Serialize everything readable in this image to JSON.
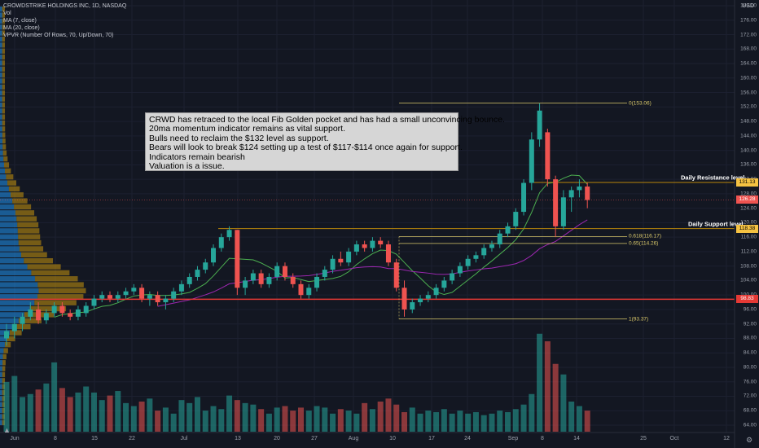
{
  "legend": {
    "title": "CROWDSTRIKE HOLDINGS INC, 1D, NASDAQ",
    "vol": "Vol",
    "ma7": "MA (7, close)",
    "ma20": "MA (20, close)",
    "vpvr": "VPVR (Number Of Rows, 70, Up/Down, 70)"
  },
  "currency": "USD",
  "annotation": {
    "lines": [
      "CRWD has retraced to the local Fib Golden pocket and has had a small unconvincing bounce.",
      "20ma momentum indicator remains as vital support.",
      "Bulls need to reclaim the $132 level as support.",
      "Bears will look to break $124 setting up a test of $117-$114 once again for support.",
      "Indicators remain bearish",
      "Valuation is a issue."
    ]
  },
  "levels": {
    "resistance_label": "Daily Resistance level",
    "support_label": "Daily Support level"
  },
  "fib_labels": {
    "f0": "0(153.06)",
    "f618": "0.618(116.17)",
    "f65": "0.65(114.26)",
    "f1": "1(93.37)"
  },
  "price_badges": {
    "resistance": "131.13",
    "last": "126.28",
    "support": "118.38",
    "red_line": "98.83"
  },
  "colors": {
    "background": "#131722",
    "up": "#26a69a",
    "down": "#ef5350",
    "ma7": "#4caf50",
    "ma20": "#9c27b0",
    "fib_line": "#d9c86a",
    "level_line": "#b8860b",
    "vpvr_up": "#2196f3",
    "vpvr_down": "#c8960c"
  },
  "x_axis_labels": [
    "Jun",
    "8",
    "15",
    "22",
    "Jul",
    "13",
    "20",
    "27",
    "Aug",
    "10",
    "17",
    "24",
    "Sep",
    "8",
    "14",
    "25",
    "Oct",
    "12"
  ],
  "chart_data": {
    "type": "candlestick",
    "title": "CROWDSTRIKE HOLDINGS INC, 1D, NASDAQ",
    "ylabel": "USD",
    "ylim": [
      60,
      180
    ],
    "yticks": [
      64,
      68,
      72,
      76,
      80,
      84,
      88,
      92,
      96,
      100,
      104,
      108,
      112,
      116,
      120,
      124,
      128,
      132,
      136,
      140,
      144,
      148,
      152,
      156,
      160,
      164,
      168,
      172,
      176,
      180
    ],
    "grid": true,
    "candles": [
      {
        "d": "Jun 1",
        "o": 88,
        "h": 92,
        "l": 86,
        "c": 90
      },
      {
        "d": "Jun 2",
        "o": 90,
        "h": 94,
        "l": 88,
        "c": 92
      },
      {
        "d": "Jun 3",
        "o": 92,
        "h": 95,
        "l": 90,
        "c": 94
      },
      {
        "d": "Jun 4",
        "o": 94,
        "h": 98,
        "l": 93,
        "c": 96
      },
      {
        "d": "Jun 5",
        "o": 96,
        "h": 98,
        "l": 92,
        "c": 93
      },
      {
        "d": "Jun 8",
        "o": 93,
        "h": 96,
        "l": 92,
        "c": 95
      },
      {
        "d": "Jun 9",
        "o": 95,
        "h": 98,
        "l": 94,
        "c": 97
      },
      {
        "d": "Jun 10",
        "o": 97,
        "h": 98,
        "l": 94,
        "c": 95
      },
      {
        "d": "Jun 11",
        "o": 95,
        "h": 96,
        "l": 93,
        "c": 94
      },
      {
        "d": "Jun 12",
        "o": 94,
        "h": 97,
        "l": 93,
        "c": 96
      },
      {
        "d": "Jun 15",
        "o": 95,
        "h": 98,
        "l": 94,
        "c": 97
      },
      {
        "d": "Jun 16",
        "o": 97,
        "h": 100,
        "l": 96,
        "c": 99
      },
      {
        "d": "Jun 17",
        "o": 99,
        "h": 101,
        "l": 98,
        "c": 100
      },
      {
        "d": "Jun 18",
        "o": 100,
        "h": 101,
        "l": 98,
        "c": 99
      },
      {
        "d": "Jun 19",
        "o": 99,
        "h": 101,
        "l": 98,
        "c": 100
      },
      {
        "d": "Jun 22",
        "o": 100,
        "h": 102,
        "l": 99,
        "c": 101
      },
      {
        "d": "Jun 23",
        "o": 101,
        "h": 103,
        "l": 100,
        "c": 102
      },
      {
        "d": "Jun 24",
        "o": 102,
        "h": 103,
        "l": 98,
        "c": 99
      },
      {
        "d": "Jun 25",
        "o": 99,
        "h": 101,
        "l": 97,
        "c": 100
      },
      {
        "d": "Jun 26",
        "o": 100,
        "h": 101,
        "l": 97,
        "c": 98
      },
      {
        "d": "Jun 29",
        "o": 98,
        "h": 100,
        "l": 96,
        "c": 99
      },
      {
        "d": "Jun 30",
        "o": 99,
        "h": 102,
        "l": 98,
        "c": 101
      },
      {
        "d": "Jul 1",
        "o": 101,
        "h": 104,
        "l": 100,
        "c": 103
      },
      {
        "d": "Jul 2",
        "o": 103,
        "h": 106,
        "l": 102,
        "c": 105
      },
      {
        "d": "Jul 6",
        "o": 105,
        "h": 108,
        "l": 104,
        "c": 107
      },
      {
        "d": "Jul 7",
        "o": 107,
        "h": 110,
        "l": 106,
        "c": 109
      },
      {
        "d": "Jul 8",
        "o": 109,
        "h": 114,
        "l": 108,
        "c": 113
      },
      {
        "d": "Jul 9",
        "o": 113,
        "h": 117,
        "l": 112,
        "c": 116
      },
      {
        "d": "Jul 10",
        "o": 116,
        "h": 119,
        "l": 115,
        "c": 118
      },
      {
        "d": "Jul 13",
        "o": 118,
        "h": 118,
        "l": 100,
        "c": 102
      },
      {
        "d": "Jul 14",
        "o": 102,
        "h": 105,
        "l": 100,
        "c": 104
      },
      {
        "d": "Jul 15",
        "o": 104,
        "h": 107,
        "l": 103,
        "c": 106
      },
      {
        "d": "Jul 16",
        "o": 106,
        "h": 107,
        "l": 102,
        "c": 103
      },
      {
        "d": "Jul 17",
        "o": 103,
        "h": 106,
        "l": 102,
        "c": 105
      },
      {
        "d": "Jul 20",
        "o": 105,
        "h": 109,
        "l": 104,
        "c": 108
      },
      {
        "d": "Jul 21",
        "o": 108,
        "h": 109,
        "l": 104,
        "c": 105
      },
      {
        "d": "Jul 22",
        "o": 105,
        "h": 106,
        "l": 102,
        "c": 103
      },
      {
        "d": "Jul 23",
        "o": 103,
        "h": 104,
        "l": 99,
        "c": 100
      },
      {
        "d": "Jul 24",
        "o": 100,
        "h": 103,
        "l": 99,
        "c": 102
      },
      {
        "d": "Jul 27",
        "o": 102,
        "h": 106,
        "l": 101,
        "c": 105
      },
      {
        "d": "Jul 28",
        "o": 105,
        "h": 108,
        "l": 104,
        "c": 107
      },
      {
        "d": "Jul 29",
        "o": 107,
        "h": 111,
        "l": 106,
        "c": 110
      },
      {
        "d": "Jul 30",
        "o": 110,
        "h": 112,
        "l": 108,
        "c": 109
      },
      {
        "d": "Jul 31",
        "o": 109,
        "h": 113,
        "l": 108,
        "c": 112
      },
      {
        "d": "Aug 3",
        "o": 112,
        "h": 115,
        "l": 111,
        "c": 114
      },
      {
        "d": "Aug 4",
        "o": 114,
        "h": 115,
        "l": 112,
        "c": 113
      },
      {
        "d": "Aug 5",
        "o": 113,
        "h": 116,
        "l": 112,
        "c": 115
      },
      {
        "d": "Aug 6",
        "o": 115,
        "h": 116,
        "l": 113,
        "c": 114
      },
      {
        "d": "Aug 7",
        "o": 114,
        "h": 115,
        "l": 108,
        "c": 109
      },
      {
        "d": "Aug 10",
        "o": 109,
        "h": 110,
        "l": 101,
        "c": 102
      },
      {
        "d": "Aug 11",
        "o": 102,
        "h": 104,
        "l": 94,
        "c": 96
      },
      {
        "d": "Aug 12",
        "o": 96,
        "h": 99,
        "l": 95,
        "c": 98
      },
      {
        "d": "Aug 13",
        "o": 98,
        "h": 100,
        "l": 97,
        "c": 99
      },
      {
        "d": "Aug 14",
        "o": 99,
        "h": 101,
        "l": 98,
        "c": 100
      },
      {
        "d": "Aug 17",
        "o": 100,
        "h": 103,
        "l": 99,
        "c": 102
      },
      {
        "d": "Aug 18",
        "o": 102,
        "h": 105,
        "l": 101,
        "c": 104
      },
      {
        "d": "Aug 19",
        "o": 104,
        "h": 107,
        "l": 103,
        "c": 106
      },
      {
        "d": "Aug 20",
        "o": 106,
        "h": 109,
        "l": 105,
        "c": 108
      },
      {
        "d": "Aug 21",
        "o": 108,
        "h": 111,
        "l": 107,
        "c": 110
      },
      {
        "d": "Aug 24",
        "o": 110,
        "h": 112,
        "l": 109,
        "c": 111
      },
      {
        "d": "Aug 25",
        "o": 111,
        "h": 114,
        "l": 110,
        "c": 113
      },
      {
        "d": "Aug 26",
        "o": 113,
        "h": 115,
        "l": 112,
        "c": 114
      },
      {
        "d": "Aug 27",
        "o": 114,
        "h": 118,
        "l": 113,
        "c": 117
      },
      {
        "d": "Aug 28",
        "o": 117,
        "h": 120,
        "l": 116,
        "c": 119
      },
      {
        "d": "Aug 31",
        "o": 119,
        "h": 124,
        "l": 118,
        "c": 123
      },
      {
        "d": "Sep 1",
        "o": 123,
        "h": 132,
        "l": 122,
        "c": 131
      },
      {
        "d": "Sep 2",
        "o": 131,
        "h": 145,
        "l": 129,
        "c": 143
      },
      {
        "d": "Sep 3",
        "o": 143,
        "h": 153,
        "l": 141,
        "c": 151
      },
      {
        "d": "Sep 4",
        "o": 145,
        "h": 146,
        "l": 130,
        "c": 132
      },
      {
        "d": "Sep 8",
        "o": 132,
        "h": 133,
        "l": 116,
        "c": 119
      },
      {
        "d": "Sep 9",
        "o": 119,
        "h": 129,
        "l": 118,
        "c": 127
      },
      {
        "d": "Sep 10",
        "o": 127,
        "h": 130,
        "l": 123,
        "c": 129
      },
      {
        "d": "Sep 11",
        "o": 129,
        "h": 132,
        "l": 127,
        "c": 130
      },
      {
        "d": "Sep 14",
        "o": 130,
        "h": 131,
        "l": 124,
        "c": 126.28
      }
    ],
    "volume": [
      33,
      37,
      23,
      25,
      28,
      32,
      46,
      29,
      23,
      26,
      30,
      26,
      21,
      24,
      27,
      19,
      17,
      20,
      22,
      14,
      16,
      12,
      21,
      19,
      23,
      14,
      17,
      15,
      24,
      21,
      19,
      18,
      15,
      12,
      16,
      17,
      14,
      16,
      14,
      17,
      16,
      12,
      15,
      14,
      12,
      19,
      15,
      20,
      22,
      18,
      13,
      16,
      12,
      14,
      13,
      15,
      12,
      14,
      12,
      13,
      11,
      12,
      14,
      13,
      15,
      18,
      25,
      65,
      60,
      45,
      38,
      20,
      17,
      14
    ],
    "ma7_last": 124.0,
    "ma20_last": 120.0,
    "lines": {
      "resistance": 131.13,
      "support": 118.38,
      "red_line": 98.83,
      "fib_0": 153.06,
      "fib_0618": 116.17,
      "fib_065": 114.26,
      "fib_1": 93.37
    }
  }
}
